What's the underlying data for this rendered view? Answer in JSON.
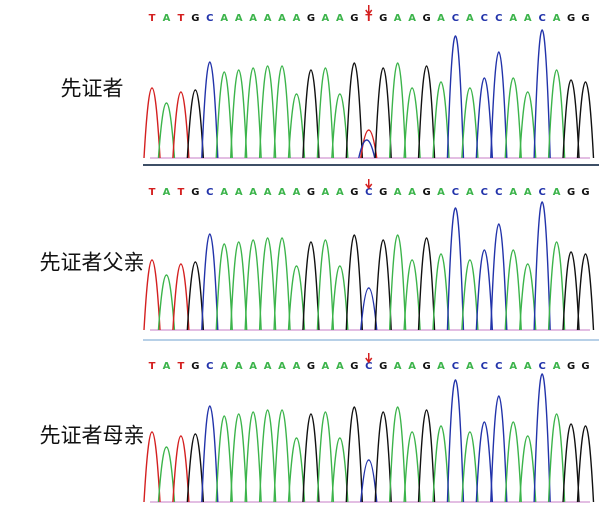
{
  "panels": [
    {
      "label": "先证者",
      "sequence": [
        "T",
        "A",
        "T",
        "G",
        "C",
        "A",
        "A",
        "A",
        "A",
        "A",
        "A",
        "G",
        "A",
        "A",
        "G",
        "T",
        "G",
        "A",
        "A",
        "G",
        "A",
        "C",
        "A",
        "C",
        "C",
        "A",
        "A",
        "C",
        "A",
        "G",
        "G"
      ]
    },
    {
      "label": "先证者父亲",
      "sequence": [
        "T",
        "A",
        "T",
        "G",
        "C",
        "A",
        "A",
        "A",
        "A",
        "A",
        "A",
        "G",
        "A",
        "A",
        "G",
        "C",
        "G",
        "A",
        "A",
        "G",
        "A",
        "C",
        "A",
        "C",
        "C",
        "A",
        "A",
        "C",
        "A",
        "G",
        "G"
      ]
    },
    {
      "label": "先证者母亲",
      "sequence": [
        "T",
        "A",
        "T",
        "G",
        "C",
        "A",
        "A",
        "A",
        "A",
        "A",
        "A",
        "G",
        "A",
        "A",
        "G",
        "C",
        "G",
        "A",
        "A",
        "G",
        "A",
        "C",
        "A",
        "C",
        "C",
        "A",
        "A",
        "C",
        "A",
        "G",
        "G"
      ]
    }
  ]
}
